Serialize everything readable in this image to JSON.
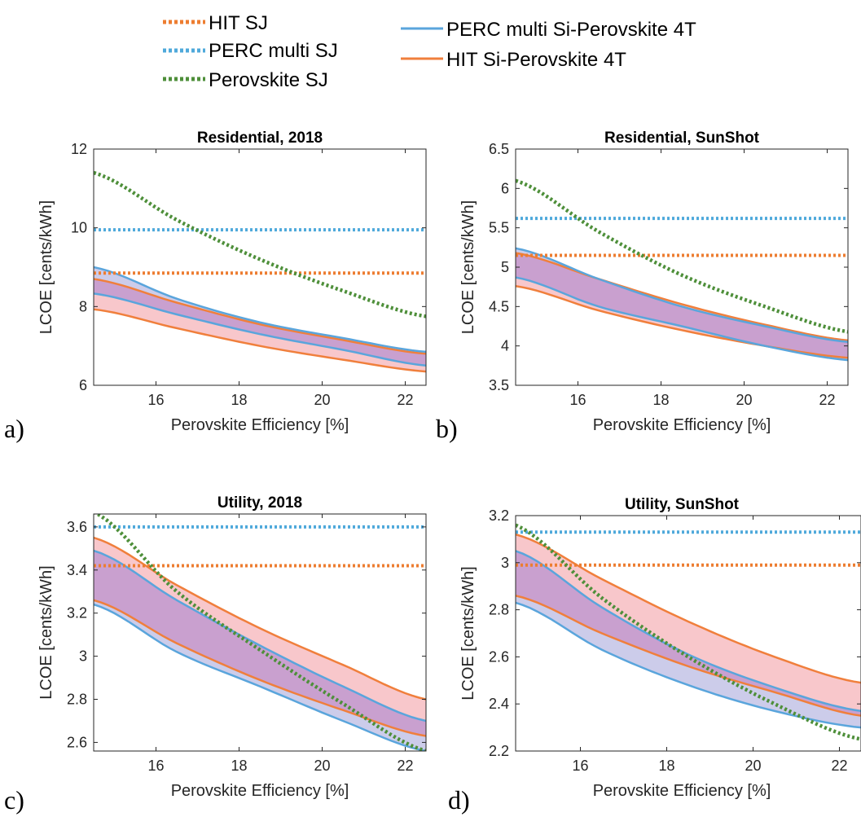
{
  "legend": [
    {
      "label": "HIT SJ",
      "color": "#ED7D31",
      "style": "dotted"
    },
    {
      "label": "PERC multi SJ",
      "color": "#4FA9DB",
      "style": "dotted"
    },
    {
      "label": "Perovskite SJ",
      "color": "#4E8F3A",
      "style": "dotted"
    },
    {
      "label": "PERC multi Si-Perovskite 4T",
      "color": "#5AA5DC",
      "style": "solid"
    },
    {
      "label": "HIT Si-Perovskite 4T",
      "color": "#F07F3C",
      "style": "solid"
    }
  ],
  "colors": {
    "hit": "#F07F3C",
    "perc": "#5AA5DC",
    "perovskite": "#4E8F3A",
    "hit_band": "#F7BDC2",
    "perc_band": "#C3C3E6",
    "overlap_band": "#C9A0CF"
  },
  "chart_data": [
    {
      "type": "line",
      "panel_label": "a)",
      "title": "Residential, 2018",
      "xlabel": "Perovskite Efficiency [%]",
      "ylabel": "LCOE [cents/kWh]",
      "xlim": [
        14.5,
        22.5
      ],
      "ylim": [
        6,
        12
      ],
      "xticks": [
        16,
        18,
        20,
        22
      ],
      "yticks": [
        6,
        8,
        10,
        12
      ],
      "ytick_labels": [
        "6",
        "8",
        "10",
        "12"
      ],
      "x": [
        14.5,
        16.5,
        18.5,
        20.5,
        22.5
      ],
      "hit_sj": 8.85,
      "perc_sj": 9.95,
      "perovskite_sj": [
        11.4,
        10.2,
        9.2,
        8.4,
        7.75
      ],
      "perc_4t_upper": [
        9.0,
        8.2,
        7.6,
        7.2,
        6.85
      ],
      "perc_4t_lower": [
        8.33,
        7.8,
        7.3,
        6.9,
        6.5
      ],
      "hit_4t_upper": [
        8.7,
        8.1,
        7.55,
        7.15,
        6.8
      ],
      "hit_4t_lower": [
        7.93,
        7.45,
        7.0,
        6.65,
        6.35
      ]
    },
    {
      "type": "line",
      "panel_label": "b)",
      "title": "Residential, SunShot",
      "xlabel": "Perovskite Efficiency [%]",
      "ylabel": "LCOE [cents/kWh]",
      "xlim": [
        14.5,
        22.5
      ],
      "ylim": [
        3.5,
        6.5
      ],
      "xticks": [
        16,
        18,
        20,
        22
      ],
      "yticks": [
        3.5,
        4,
        4.5,
        5,
        5.5,
        6,
        6.5
      ],
      "ytick_labels": [
        "3.5",
        "4",
        "4.5",
        "5",
        "5.5",
        "6",
        "6.5"
      ],
      "x": [
        14.5,
        16.5,
        18.5,
        20.5,
        22.5
      ],
      "hit_sj": 5.15,
      "perc_sj": 5.62,
      "perovskite_sj": [
        6.1,
        5.45,
        4.9,
        4.5,
        4.18
      ],
      "perc_4t_upper": [
        5.24,
        4.85,
        4.5,
        4.25,
        4.05
      ],
      "perc_4t_lower": [
        4.87,
        4.5,
        4.25,
        4.0,
        3.82
      ],
      "hit_4t_upper": [
        5.18,
        4.85,
        4.53,
        4.27,
        4.07
      ],
      "hit_4t_lower": [
        4.76,
        4.45,
        4.2,
        4.0,
        3.85
      ]
    },
    {
      "type": "line",
      "panel_label": "c)",
      "title": "Utility, 2018",
      "xlabel": "Perovskite Efficiency [%]",
      "ylabel": "LCOE [cents/kWh]",
      "xlim": [
        14.5,
        22.5
      ],
      "ylim": [
        2.56,
        3.66
      ],
      "xticks": [
        16,
        18,
        20,
        22
      ],
      "yticks": [
        2.6,
        2.8,
        3.0,
        3.2,
        3.4,
        3.6
      ],
      "ytick_labels": [
        "2.6",
        "2.8",
        "3",
        "3.2",
        "3.4",
        "3.6"
      ],
      "x": [
        14.5,
        16.5,
        18.5,
        20.5,
        22.5
      ],
      "hit_sj": 3.42,
      "perc_sj": 3.6,
      "perovskite_sj": [
        3.67,
        3.3,
        3.03,
        2.78,
        2.56
      ],
      "perc_4t_upper": [
        3.49,
        3.26,
        3.05,
        2.86,
        2.7
      ],
      "perc_4t_lower": [
        3.24,
        3.02,
        2.86,
        2.7,
        2.56
      ],
      "hit_4t_upper": [
        3.55,
        3.33,
        3.13,
        2.96,
        2.8
      ],
      "hit_4t_lower": [
        3.26,
        3.06,
        2.89,
        2.75,
        2.63
      ]
    },
    {
      "type": "line",
      "panel_label": "d)",
      "title": "Utility, SunShot",
      "xlabel": "Perovskite Efficiency [%]",
      "ylabel": "LCOE [cents/kWh]",
      "xlim": [
        14.5,
        22.5
      ],
      "ylim": [
        2.2,
        3.2
      ],
      "xticks": [
        16,
        18,
        20,
        22
      ],
      "yticks": [
        2.2,
        2.4,
        2.6,
        2.8,
        3.0,
        3.2
      ],
      "ytick_labels": [
        "2.2",
        "2.4",
        "2.6",
        "2.8",
        "3",
        "3.2"
      ],
      "x": [
        14.5,
        16.5,
        18.5,
        20.5,
        22.5
      ],
      "hit_sj": 2.99,
      "perc_sj": 3.13,
      "perovskite_sj": [
        3.16,
        2.85,
        2.6,
        2.4,
        2.25
      ],
      "perc_4t_upper": [
        3.05,
        2.81,
        2.61,
        2.47,
        2.37
      ],
      "perc_4t_lower": [
        2.83,
        2.63,
        2.48,
        2.37,
        2.3
      ],
      "hit_4t_upper": [
        3.12,
        2.93,
        2.75,
        2.6,
        2.49
      ],
      "hit_4t_lower": [
        2.86,
        2.7,
        2.56,
        2.45,
        2.35
      ]
    }
  ]
}
